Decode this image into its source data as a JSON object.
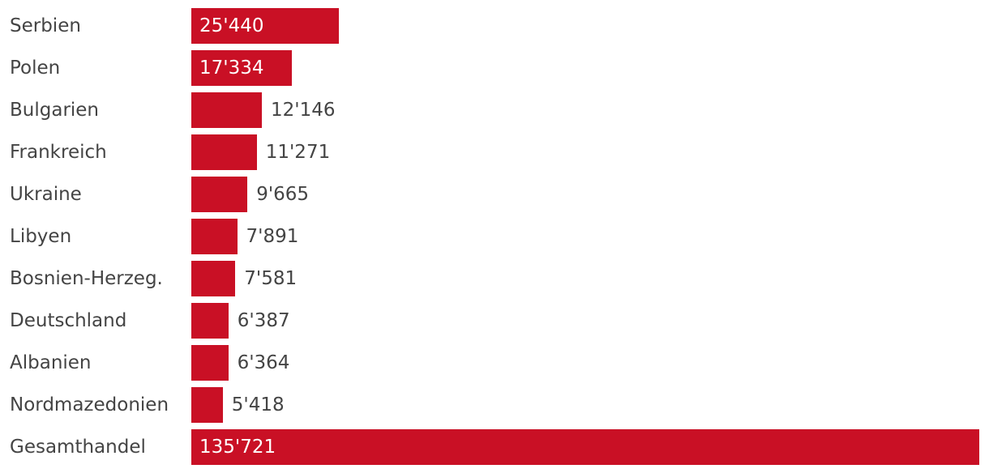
{
  "chart_data": {
    "type": "bar",
    "orientation": "horizontal",
    "bar_color": "#c91025",
    "categories": [
      "Serbien",
      "Polen",
      "Bulgarien",
      "Frankreich",
      "Ukraine",
      "Libyen",
      "Bosnien-Herzeg.",
      "Deutschland",
      "Albanien",
      "Nordmazedonien",
      "Gesamthandel"
    ],
    "values": [
      25440,
      17334,
      12146,
      11271,
      9665,
      7891,
      7581,
      6387,
      6364,
      5418,
      135721
    ],
    "value_labels": [
      "25'440",
      "17'334",
      "12'146",
      "11'271",
      "9'665",
      "7'891",
      "7'581",
      "6'387",
      "6'364",
      "5'418",
      "135'721"
    ],
    "xlim": [
      0,
      135721
    ],
    "grid": false,
    "title": "",
    "xlabel": "",
    "ylabel": ""
  }
}
